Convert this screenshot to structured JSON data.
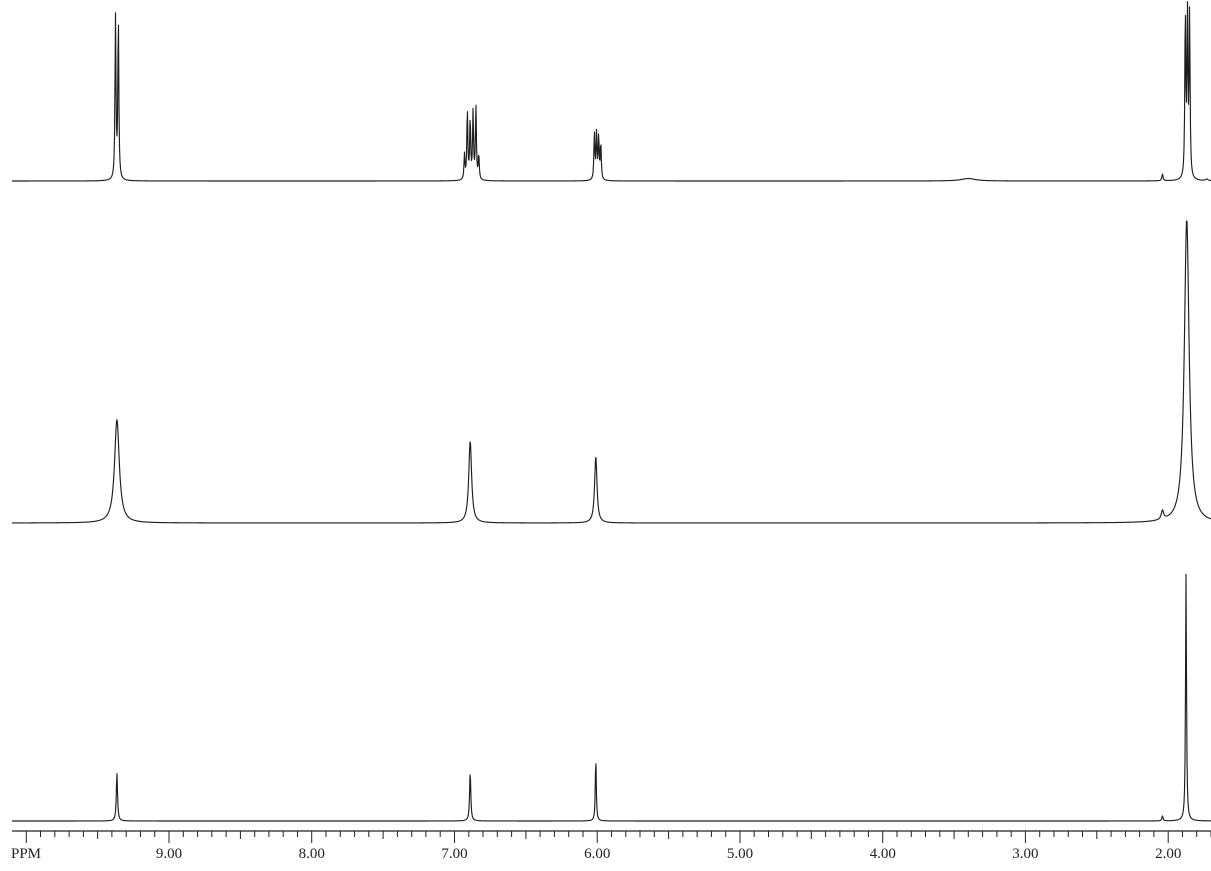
{
  "chart_data": {
    "type": "line",
    "x_unit_label": "PPM",
    "x_tick_labels": [
      "9.00",
      "8.00",
      "7.00",
      "6.00",
      "5.00",
      "4.00",
      "3.00",
      "2.00"
    ],
    "x_ticks": [
      9.0,
      8.0,
      7.0,
      6.0,
      5.0,
      4.0,
      3.0,
      2.0
    ],
    "xlim": [
      10.1,
      1.7
    ],
    "x_reversed": true,
    "minor_tick_step": 0.1,
    "stacked_spectra": 3,
    "series": [
      {
        "peaks": [
          {
            "ppm": 9.375,
            "height": 0.97,
            "width": 0.004
          },
          {
            "ppm": 9.355,
            "height": 0.97,
            "width": 0.004
          },
          {
            "ppm": 6.93,
            "height": 0.15,
            "width": 0.004
          },
          {
            "ppm": 6.91,
            "height": 0.42,
            "width": 0.004
          },
          {
            "ppm": 6.89,
            "height": 0.36,
            "width": 0.004
          },
          {
            "ppm": 6.87,
            "height": 0.4,
            "width": 0.004
          },
          {
            "ppm": 6.85,
            "height": 0.44,
            "width": 0.004
          },
          {
            "ppm": 6.83,
            "height": 0.15,
            "width": 0.004
          },
          {
            "ppm": 6.02,
            "height": 0.28,
            "width": 0.004
          },
          {
            "ppm": 6.005,
            "height": 0.27,
            "width": 0.004
          },
          {
            "ppm": 5.99,
            "height": 0.26,
            "width": 0.004
          },
          {
            "ppm": 5.975,
            "height": 0.22,
            "width": 0.004
          },
          {
            "ppm": 3.4,
            "height": 0.015,
            "width": 0.06
          },
          {
            "ppm": 2.04,
            "height": 0.04,
            "width": 0.005
          },
          {
            "ppm": 1.88,
            "height": 1.0,
            "width": 0.004
          },
          {
            "ppm": 1.865,
            "height": 0.95,
            "width": 0.004
          },
          {
            "ppm": 1.85,
            "height": 0.98,
            "width": 0.004
          },
          {
            "ppm": 1.73,
            "height": 0.01,
            "width": 0.01
          }
        ]
      },
      {
        "peaks": [
          {
            "ppm": 9.365,
            "height": 0.34,
            "width": 0.02
          },
          {
            "ppm": 6.89,
            "height": 0.27,
            "width": 0.012
          },
          {
            "ppm": 6.01,
            "height": 0.22,
            "width": 0.01
          },
          {
            "ppm": 2.04,
            "height": 0.03,
            "width": 0.01
          },
          {
            "ppm": 1.87,
            "height": 1.0,
            "width": 0.02
          }
        ]
      },
      {
        "peaks": [
          {
            "ppm": 9.365,
            "height": 0.195,
            "width": 0.005
          },
          {
            "ppm": 6.89,
            "height": 0.2,
            "width": 0.005
          },
          {
            "ppm": 6.01,
            "height": 0.26,
            "width": 0.004
          },
          {
            "ppm": 2.04,
            "height": 0.02,
            "width": 0.005
          },
          {
            "ppm": 1.875,
            "height": 1.0,
            "width": 0.004
          }
        ]
      }
    ],
    "grid": false,
    "legend": false
  }
}
